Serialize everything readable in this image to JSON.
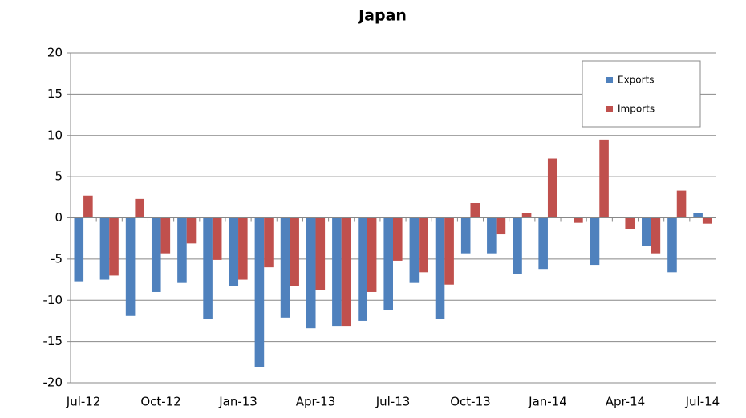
{
  "chart_data": {
    "type": "bar",
    "title": "Japan",
    "categories": [
      "Jul-12",
      null,
      null,
      "Oct-12",
      null,
      null,
      "Jan-13",
      null,
      null,
      "Apr-13",
      null,
      null,
      "Jul-13",
      null,
      null,
      "Oct-13",
      null,
      null,
      "Jan-14",
      null,
      null,
      "Apr-14",
      null,
      null,
      "Jul-14"
    ],
    "series": [
      {
        "name": "Exports",
        "color": "#4f81bd",
        "values": [
          -7.7,
          -7.5,
          -11.9,
          -9.0,
          -7.9,
          -12.3,
          -8.3,
          -18.1,
          -12.1,
          -13.4,
          -13.1,
          -12.5,
          -11.2,
          -7.9,
          -12.3,
          -4.3,
          -4.3,
          -6.8,
          -6.2,
          0.1,
          -5.7,
          0.1,
          -3.4,
          -6.6,
          0.6
        ]
      },
      {
        "name": "Imports",
        "color": "#c0504d",
        "values": [
          2.7,
          -7.0,
          2.3,
          -4.3,
          -3.1,
          -5.1,
          -7.5,
          -6.0,
          -8.3,
          -8.8,
          -13.1,
          -9.0,
          -5.2,
          -6.6,
          -8.1,
          1.8,
          -2.0,
          0.6,
          7.2,
          -0.6,
          9.5,
          -1.4,
          -4.3,
          3.3,
          -0.7
        ]
      }
    ],
    "ylim": [
      -20,
      20
    ],
    "yticks": [
      -20,
      -15,
      -10,
      -5,
      0,
      5,
      10,
      15,
      20
    ],
    "grid": true,
    "legend": "top-right"
  }
}
